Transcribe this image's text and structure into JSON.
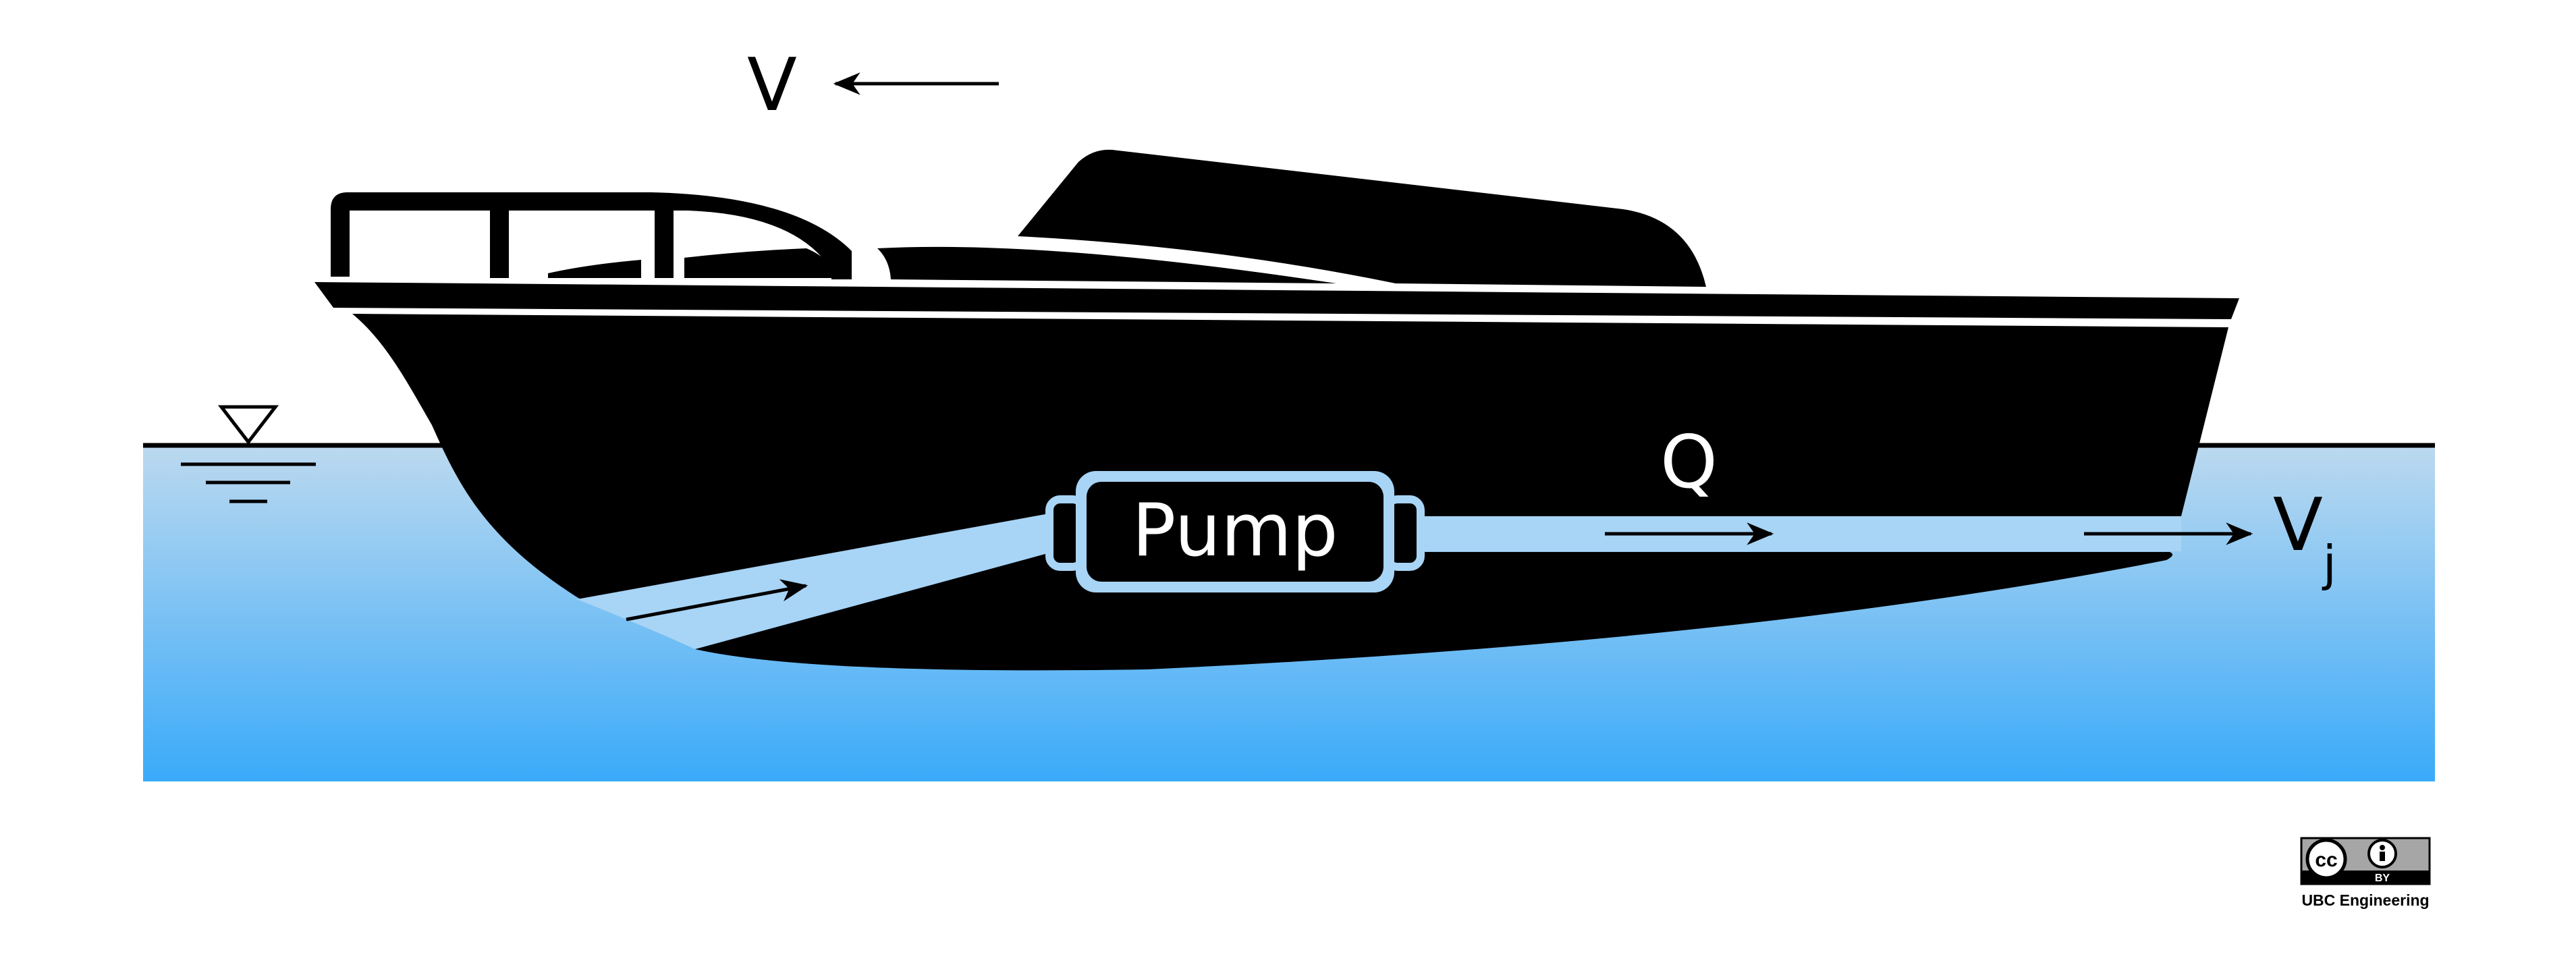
{
  "labels": {
    "boat_velocity": "V",
    "flow_rate": "Q",
    "jet_velocity": "V",
    "jet_velocity_subscript": "j",
    "pump": "Pump"
  },
  "license": {
    "cc_mark": "cc",
    "by_mark": "BY",
    "credit": "UBC Engineering"
  },
  "colors": {
    "water_top": "#bcd9ef",
    "water_bottom": "#3aaaf9",
    "duct": "#a8d4f5",
    "hull": "#000000",
    "background": "#ffffff"
  }
}
